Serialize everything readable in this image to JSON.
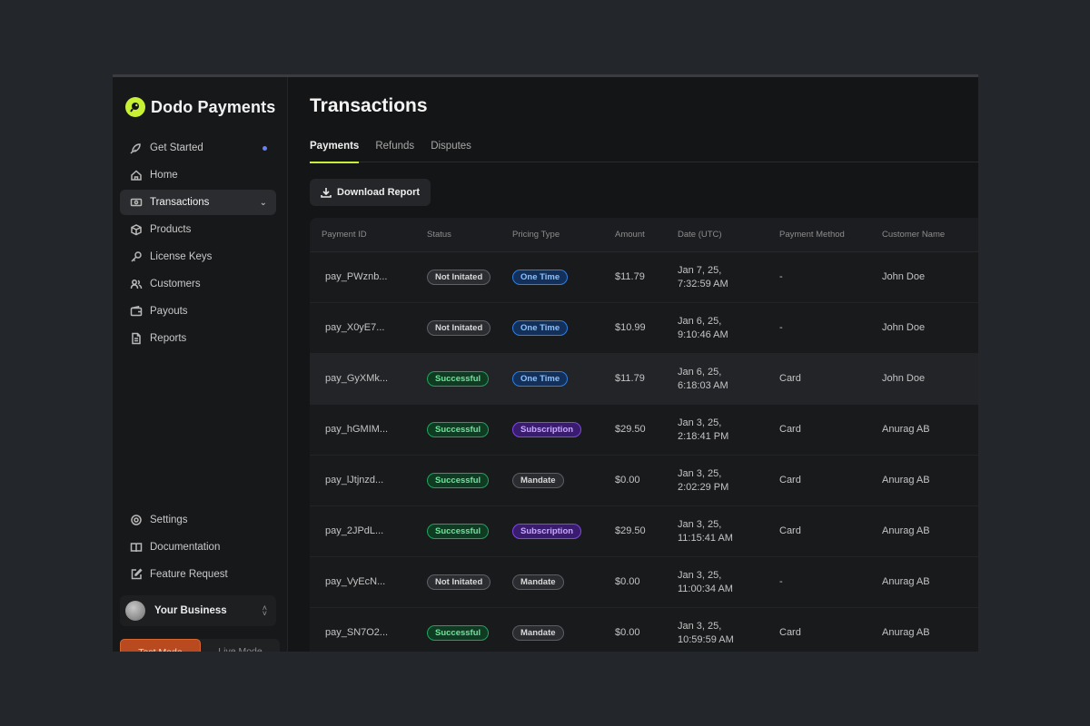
{
  "brand": {
    "name": "Dodo Payments",
    "accent": "#c6f135"
  },
  "sidebar": {
    "items": [
      {
        "label": "Get Started",
        "icon": "rocket-icon",
        "badge": true
      },
      {
        "label": "Home",
        "icon": "home-icon"
      },
      {
        "label": "Transactions",
        "icon": "banknote-icon",
        "active": true
      },
      {
        "label": "Products",
        "icon": "box-icon"
      },
      {
        "label": "License Keys",
        "icon": "key-icon"
      },
      {
        "label": "Customers",
        "icon": "users-icon"
      },
      {
        "label": "Payouts",
        "icon": "wallet-icon"
      },
      {
        "label": "Reports",
        "icon": "document-icon"
      }
    ],
    "bottom_items": [
      {
        "label": "Settings",
        "icon": "gear-icon"
      },
      {
        "label": "Documentation",
        "icon": "book-icon"
      },
      {
        "label": "Feature Request",
        "icon": "edit-icon"
      }
    ],
    "business": "Your Business",
    "mode": {
      "test": "Test Mode",
      "live": "Live Mode"
    }
  },
  "main": {
    "title": "Transactions",
    "tabs": [
      "Payments",
      "Refunds",
      "Disputes"
    ],
    "download_label": "Download Report",
    "columns": [
      "Payment ID",
      "Status",
      "Pricing Type",
      "Amount",
      "Date (UTC)",
      "Payment Method",
      "Customer Name"
    ],
    "rows": [
      {
        "id": "pay_PWznb...",
        "status": "Not Initated",
        "pricing": "One Time",
        "amount": "$11.79",
        "date1": "Jan 7, 25,",
        "date2": "7:32:59 AM",
        "method": "-",
        "customer": "John Doe"
      },
      {
        "id": "pay_X0yE7...",
        "status": "Not Initated",
        "pricing": "One Time",
        "amount": "$10.99",
        "date1": "Jan 6, 25,",
        "date2": "9:10:46 AM",
        "method": "-",
        "customer": "John Doe"
      },
      {
        "id": "pay_GyXMk...",
        "status": "Successful",
        "pricing": "One Time",
        "amount": "$11.79",
        "date1": "Jan 6, 25,",
        "date2": "6:18:03 AM",
        "method": "Card",
        "customer": "John Doe"
      },
      {
        "id": "pay_hGMIM...",
        "status": "Successful",
        "pricing": "Subscription",
        "amount": "$29.50",
        "date1": "Jan 3, 25,",
        "date2": "2:18:41 PM",
        "method": "Card",
        "customer": "Anurag AB"
      },
      {
        "id": "pay_lJtjnzd...",
        "status": "Successful",
        "pricing": "Mandate",
        "amount": "$0.00",
        "date1": "Jan 3, 25,",
        "date2": "2:02:29 PM",
        "method": "Card",
        "customer": "Anurag AB"
      },
      {
        "id": "pay_2JPdL...",
        "status": "Successful",
        "pricing": "Subscription",
        "amount": "$29.50",
        "date1": "Jan 3, 25,",
        "date2": "11:15:41 AM",
        "method": "Card",
        "customer": "Anurag AB"
      },
      {
        "id": "pay_VyEcN...",
        "status": "Not Initated",
        "pricing": "Mandate",
        "amount": "$0.00",
        "date1": "Jan 3, 25,",
        "date2": "11:00:34 AM",
        "method": "-",
        "customer": "Anurag AB"
      },
      {
        "id": "pay_SN7O2...",
        "status": "Successful",
        "pricing": "Mandate",
        "amount": "$0.00",
        "date1": "Jan 3, 25,",
        "date2": "10:59:59 AM",
        "method": "Card",
        "customer": "Anurag AB"
      }
    ]
  }
}
